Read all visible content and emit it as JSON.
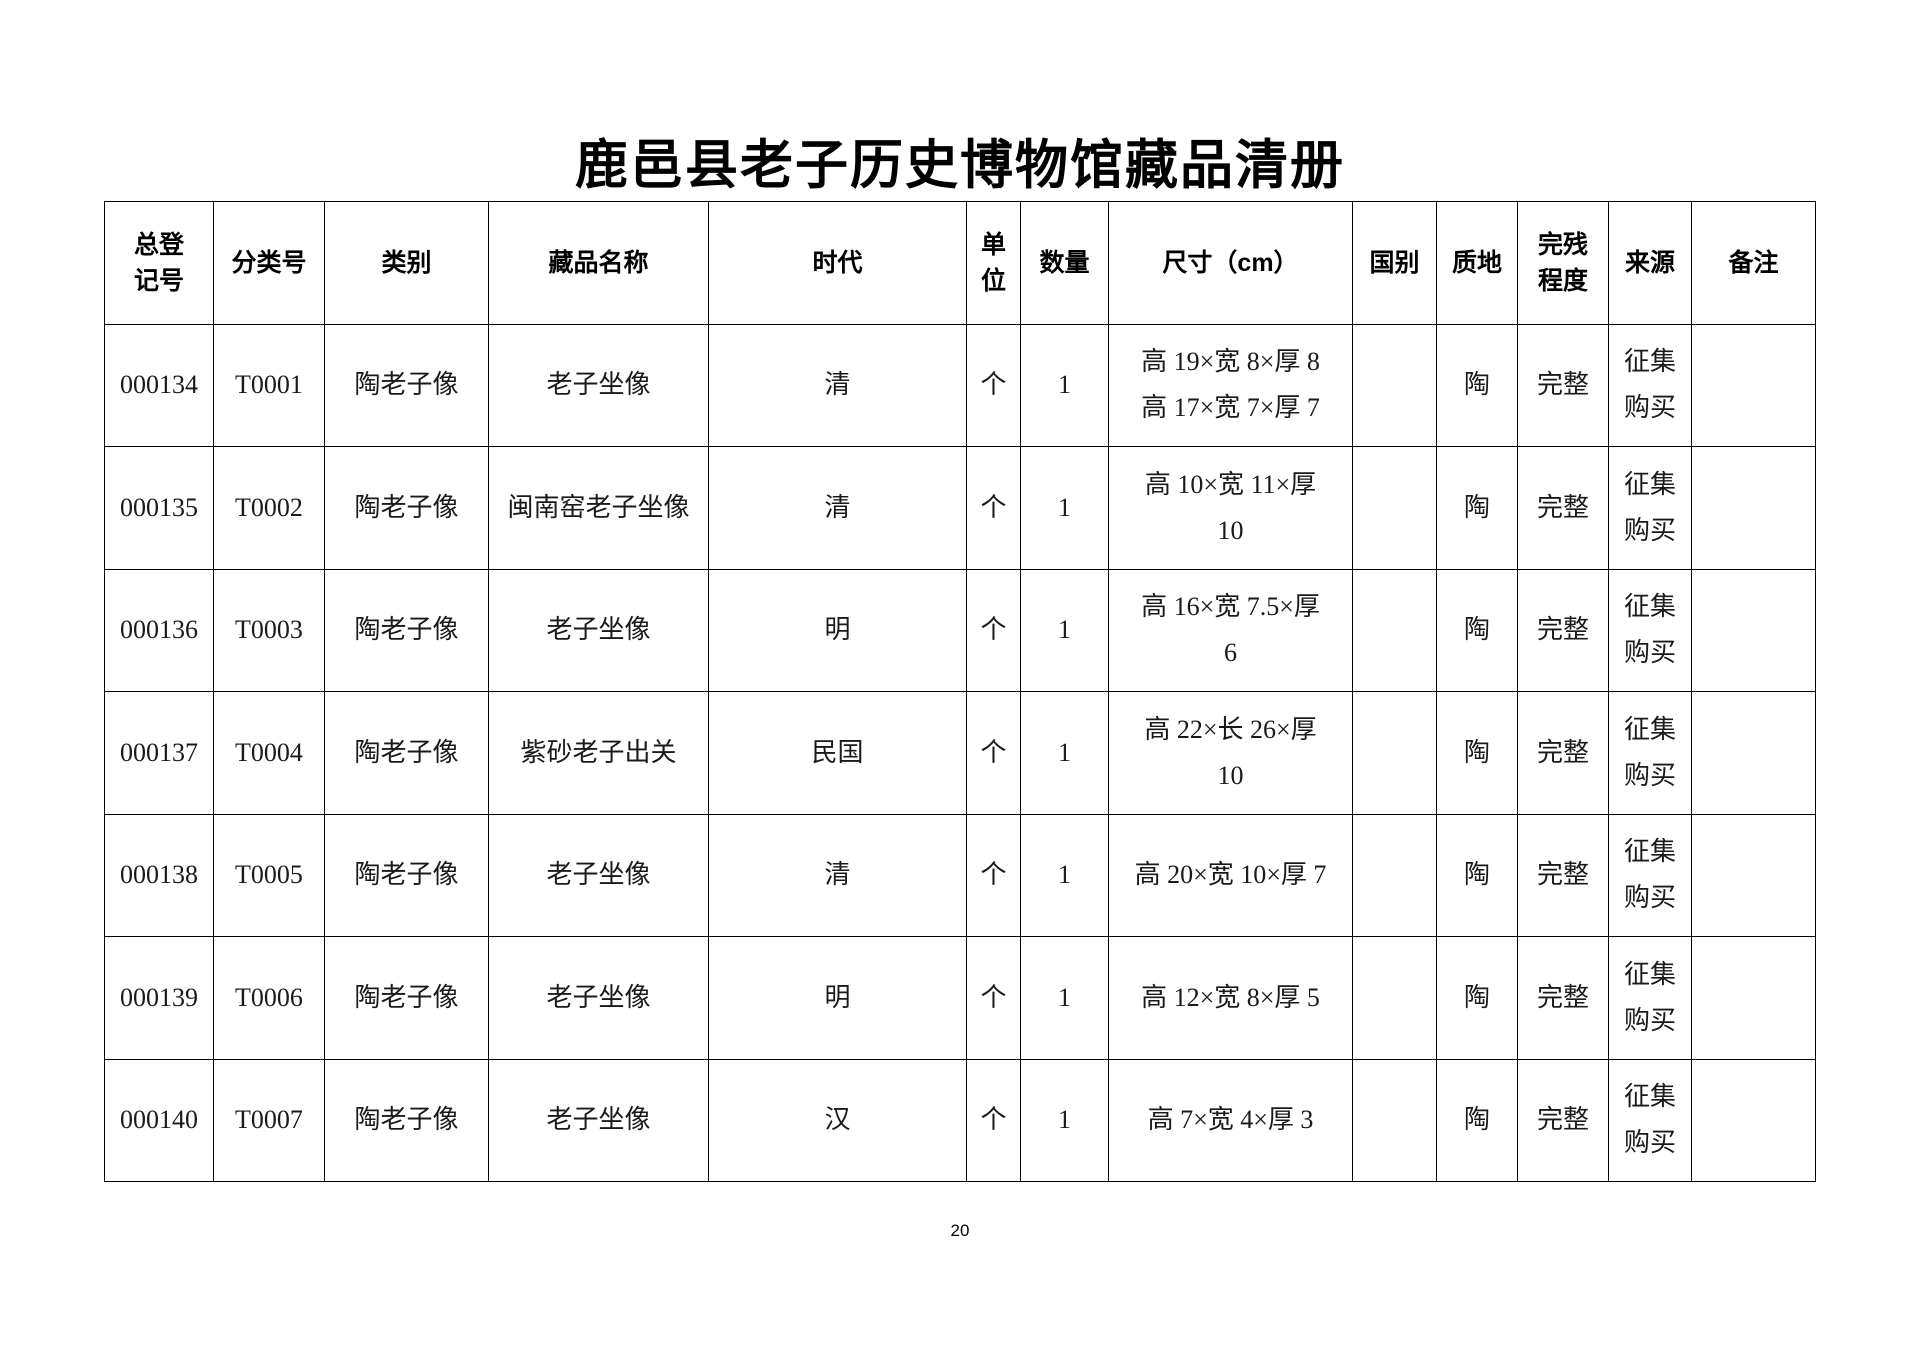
{
  "document": {
    "title": "鹿邑县老子历史博物馆藏品清册",
    "page_number": "20"
  },
  "table": {
    "columns": [
      "总登记号",
      "分类号",
      "类别",
      "藏品名称",
      "时代",
      "单位",
      "数量",
      "尺寸（cm）",
      "国别",
      "质地",
      "完残程度",
      "来源",
      "备注"
    ],
    "rows": [
      {
        "reg_no": "000134",
        "class_no": "T0001",
        "category": "陶老子像",
        "name": "老子坐像",
        "era": "清",
        "unit": "个",
        "quantity": 1,
        "size": [
          "高 19×宽 8×厚 8",
          "高 17×宽 7×厚 7"
        ],
        "material": "陶",
        "condition": "完整",
        "source": "征集购买"
      },
      {
        "reg_no": "000135",
        "class_no": "T0002",
        "category": "陶老子像",
        "name": "闽南窑老子坐像",
        "era": "清",
        "unit": "个",
        "quantity": 1,
        "size": [
          "高 10×宽 11×厚",
          "10"
        ],
        "material": "陶",
        "condition": "完整",
        "source": "征集购买"
      },
      {
        "reg_no": "000136",
        "class_no": "T0003",
        "category": "陶老子像",
        "name": "老子坐像",
        "era": "明",
        "unit": "个",
        "quantity": 1,
        "size": [
          "高 16×宽 7.5×厚",
          "6"
        ],
        "material": "陶",
        "condition": "完整",
        "source": "征集购买"
      },
      {
        "reg_no": "000137",
        "class_no": "T0004",
        "category": "陶老子像",
        "name": "紫砂老子出关",
        "era": "民国",
        "unit": "个",
        "quantity": 1,
        "size": [
          "高 22×长 26×厚",
          "10"
        ],
        "material": "陶",
        "condition": "完整",
        "source": "征集购买"
      },
      {
        "reg_no": "000138",
        "class_no": "T0005",
        "category": "陶老子像",
        "name": "老子坐像",
        "era": "清",
        "unit": "个",
        "quantity": 1,
        "size": [
          "高 20×宽 10×厚 7"
        ],
        "material": "陶",
        "condition": "完整",
        "source": "征集购买"
      },
      {
        "reg_no": "000139",
        "class_no": "T0006",
        "category": "陶老子像",
        "name": "老子坐像",
        "era": "明",
        "unit": "个",
        "quantity": 1,
        "size": [
          "高 12×宽 8×厚 5"
        ],
        "material": "陶",
        "condition": "完整",
        "source": "征集购买"
      },
      {
        "reg_no": "000140",
        "class_no": "T0007",
        "category": "陶老子像",
        "name": "老子坐像",
        "era": "汉",
        "unit": "个",
        "quantity": 1,
        "size": [
          "高 7×宽 4×厚 3"
        ],
        "material": "陶",
        "condition": "完整",
        "source": "征集购买"
      }
    ]
  }
}
